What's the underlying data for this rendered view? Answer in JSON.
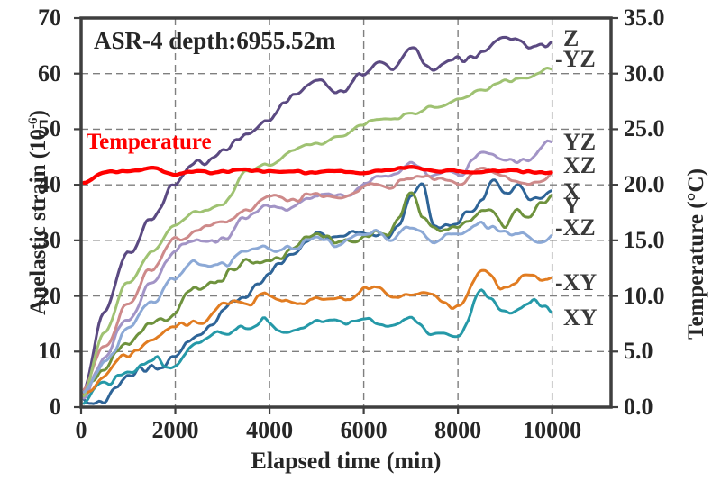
{
  "chart_data": {
    "type": "line",
    "title": "ASR-4 depth:6955.52m",
    "x_axis": {
      "label": "Elapsed time (min)",
      "min": 0,
      "max": 11250,
      "data_max": 10000,
      "ticks": [
        {
          "v": 0,
          "label": "0"
        },
        {
          "v": 2000,
          "label": "2000"
        },
        {
          "v": 4000,
          "label": "4000"
        },
        {
          "v": 6000,
          "label": "6000"
        },
        {
          "v": 8000,
          "label": "8000"
        },
        {
          "v": 10000,
          "label": "10000"
        }
      ]
    },
    "y_left": {
      "label_base": "Anelastic strain (10",
      "label_sup": "-6",
      "label_close": ")",
      "min": 0,
      "max": 70,
      "ticks": [
        {
          "v": 0,
          "label": "0"
        },
        {
          "v": 10,
          "label": "10"
        },
        {
          "v": 20,
          "label": "20"
        },
        {
          "v": 30,
          "label": "30"
        },
        {
          "v": 40,
          "label": "40"
        },
        {
          "v": 50,
          "label": "50"
        },
        {
          "v": 60,
          "label": "60"
        },
        {
          "v": 70,
          "label": "70"
        }
      ]
    },
    "y_right": {
      "label": "Temperature (°C)",
      "min": 0,
      "max": 35,
      "ticks": [
        {
          "v": 0,
          "label": "0.0"
        },
        {
          "v": 5,
          "label": "5.0"
        },
        {
          "v": 10,
          "label": "10.0"
        },
        {
          "v": 15,
          "label": "15.0"
        },
        {
          "v": 20,
          "label": "20.0"
        },
        {
          "v": 25,
          "label": "25.0"
        },
        {
          "v": 30,
          "label": "30.0"
        },
        {
          "v": 35,
          "label": "35.0"
        }
      ]
    },
    "grid": {
      "color": "#7f7f7f",
      "dash": "8 5"
    },
    "frame_color": "#3f3f3f",
    "annotation": {
      "text": "Temperature",
      "color": "#ff0000",
      "t": 110,
      "strain": 45.3
    },
    "series": [
      {
        "id": "X",
        "label": "X",
        "label_at": 38.8,
        "axis": "left",
        "color": "#2E6497",
        "width": 3,
        "noise": 1.1,
        "values": [
          1.8,
          1.2,
          1.5,
          3.5,
          5,
          6.5,
          8,
          8.5,
          10.5,
          12,
          13,
          14.5,
          16,
          18,
          20,
          22.5,
          25,
          27,
          28.5,
          30,
          30.5,
          30,
          30,
          30.5,
          30.5,
          31,
          31.5,
          34,
          38,
          40.5,
          33,
          33.5,
          34,
          35.5,
          37.5,
          41.5,
          38.5,
          39.5,
          37.5,
          39,
          40
        ]
      },
      {
        "id": "Y",
        "label": "Y",
        "label_at": 36.1,
        "axis": "left",
        "color": "#6E923D",
        "width": 3,
        "noise": 1.1,
        "values": [
          1.5,
          4,
          6.5,
          9,
          11,
          13,
          14.5,
          16,
          17.8,
          19.5,
          21,
          22,
          22.8,
          24.5,
          26.5,
          26,
          27,
          28,
          29.5,
          30.5,
          30.6,
          30,
          30,
          30.5,
          31,
          31,
          31.5,
          34.5,
          38.5,
          34,
          31.5,
          32,
          32.5,
          33.5,
          34,
          35,
          34,
          36,
          34.5,
          37.5,
          38.5
        ]
      },
      {
        "id": "Z",
        "label": "Z",
        "label_at": 66.2,
        "axis": "left",
        "color": "#5B4A82",
        "width": 3.1,
        "noise": 1.0,
        "values": [
          2,
          17.5,
          27.7,
          34,
          40.2,
          43.5,
          45.6,
          48.5,
          52,
          55.5,
          57.5,
          57,
          59,
          61.5,
          64.5,
          61.5,
          63,
          64,
          67.5,
          64.5,
          65.5
        ]
      },
      {
        "id": "XY",
        "label": "XY",
        "label_at": 16.1,
        "axis": "left",
        "color": "#2599A8",
        "width": 3,
        "noise": 1.0,
        "values": [
          1.5,
          3.5,
          6,
          8,
          8,
          11,
          13,
          13.5,
          15,
          14,
          15,
          14.5,
          15.5,
          15,
          16,
          13.5,
          12,
          20.5,
          16.5,
          19.5,
          17.5
        ]
      },
      {
        "id": "YZ",
        "label": "YZ",
        "label_at": 47.7,
        "axis": "left",
        "color": "#A294C6",
        "width": 3,
        "noise": 1.0,
        "values": [
          1.5,
          9.5,
          16.5,
          22.5,
          27.5,
          29,
          30.5,
          33.5,
          36.3,
          36.5,
          38,
          38.5,
          40,
          41.5,
          43.5,
          42.5,
          42,
          46.5,
          44.5,
          45,
          47.5
        ]
      },
      {
        "id": "XZ",
        "label": "XZ",
        "label_at": 43.4,
        "axis": "left",
        "color": "#CE8A8A",
        "width": 3,
        "noise": 0.9,
        "values": [
          2,
          11,
          18.5,
          25,
          29.5,
          31.5,
          32.5,
          35.5,
          38,
          37.5,
          38.5,
          38,
          39.5,
          40.5,
          42.5,
          40.5,
          40,
          43,
          41.5,
          41,
          42
        ]
      },
      {
        "id": "-XY",
        "label": "-XY",
        "label_at": 22.4,
        "axis": "left",
        "color": "#E17C21",
        "width": 3,
        "noise": 1.0,
        "values": [
          1.5,
          6,
          8.5,
          11.5,
          14,
          14.5,
          17.9,
          17.5,
          19.8,
          18.5,
          19.8,
          19.5,
          21,
          20.5,
          21.5,
          19.5,
          19,
          25.5,
          22,
          23.5,
          22.7
        ]
      },
      {
        "id": "-YZ",
        "label": "-YZ",
        "label_at": 62.6,
        "axis": "left",
        "color": "#9FC272",
        "width": 3,
        "noise": 0.6,
        "values": [
          1.5,
          13,
          22.5,
          28,
          32.5,
          34.5,
          36.5,
          41.5,
          44,
          46.5,
          47.5,
          49,
          50.5,
          51.5,
          52.5,
          54,
          55.5,
          57,
          59.5,
          59.5,
          61
        ]
      },
      {
        "id": "-XZ",
        "label": "-XZ",
        "label_at": 32.2,
        "axis": "left",
        "color": "#8CA9D6",
        "width": 3,
        "noise": 1.0,
        "values": [
          2,
          8,
          13.5,
          19.5,
          23.5,
          25,
          25.6,
          27.5,
          28.2,
          28.5,
          29.3,
          29.5,
          30,
          30.5,
          32.5,
          30,
          30.5,
          33.5,
          31,
          30.5,
          31
        ]
      },
      {
        "id": "Temperature",
        "label": "",
        "label_at": 0,
        "axis": "right",
        "color": "#FF0000",
        "width": 4.3,
        "noise": 0.2,
        "values": [
          20.3,
          21.1,
          21.0,
          21.3,
          20.8,
          21.2,
          21.1,
          21.3,
          21.2,
          21.4,
          21.1,
          21.3,
          21.0,
          21.2,
          21.5,
          21.1,
          21.3,
          21.0,
          21.2,
          21.1,
          21.2
        ]
      }
    ]
  }
}
